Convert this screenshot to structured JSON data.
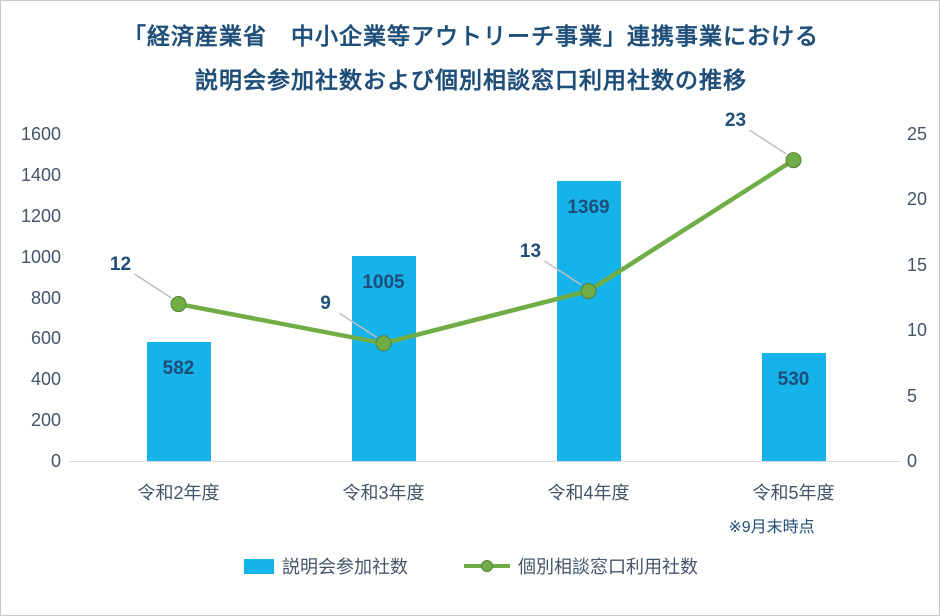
{
  "title": {
    "line1": "「経済産業省　中小企業等アウトリーチ事業」連携事業における",
    "line2": "説明会参加社数および個別相談窓口利用社数の推移"
  },
  "note": "※9月末時点",
  "colors": {
    "bar": "#16B2EA",
    "line": "#70AD47",
    "line_marker_stroke": "#538135",
    "title_text": "#1F4E79",
    "data_label": "#1F4E79",
    "axis_text": "#44546A",
    "leader_line": "#BFBFBF",
    "axis_line": "#D9D9D9"
  },
  "chart_data": {
    "type": "combo",
    "subtypes": [
      "bar",
      "line"
    ],
    "categories": [
      "令和2年度",
      "令和3年度",
      "令和4年度",
      "令和5年度"
    ],
    "series": [
      {
        "name": "説明会参加社数",
        "type": "bar",
        "axis": "left",
        "color": "#16B2EA",
        "values": [
          582,
          1005,
          1369,
          530
        ]
      },
      {
        "name": "個別相談窓口利用社数",
        "type": "line",
        "axis": "right",
        "color": "#70AD47",
        "values": [
          12,
          9,
          13,
          23
        ]
      }
    ],
    "left_axis": {
      "min": 0,
      "max": 1600,
      "step": 200,
      "ticks": [
        0,
        200,
        400,
        600,
        800,
        1000,
        1200,
        1400,
        1600
      ]
    },
    "right_axis": {
      "min": 0,
      "max": 25,
      "step": 5,
      "ticks": [
        0,
        5,
        10,
        15,
        20,
        25
      ]
    },
    "grid": false,
    "legend_position": "bottom",
    "category_note": {
      "category": "令和5年度",
      "text": "※9月末時点"
    }
  }
}
